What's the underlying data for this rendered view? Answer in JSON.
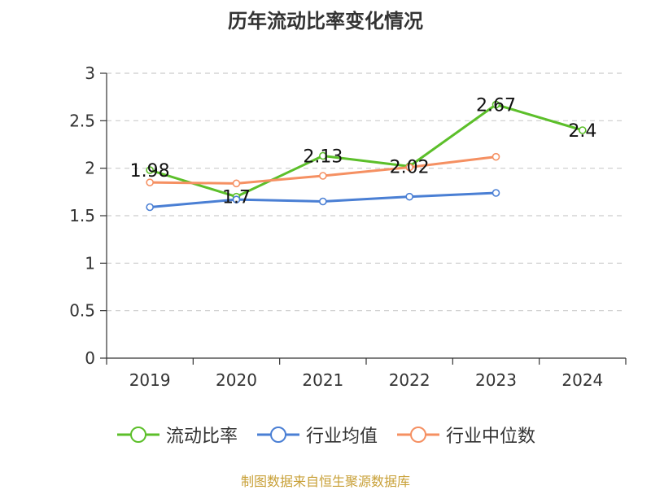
{
  "chart_data": {
    "type": "line",
    "title": "历年流动比率变化情况",
    "categories": [
      "2019",
      "2020",
      "2021",
      "2022",
      "2023",
      "2024"
    ],
    "ylim": [
      0,
      3
    ],
    "yticks": [
      0,
      0.5,
      1,
      1.5,
      2,
      2.5,
      3
    ],
    "ytick_labels": [
      "0",
      "0.5",
      "1",
      "1.5",
      "2",
      "2.5",
      "3"
    ],
    "grid": true,
    "legend_position": "bottom",
    "series": [
      {
        "name": "流动比率",
        "color": "#5cbf2a",
        "values": [
          1.98,
          1.7,
          2.13,
          2.02,
          2.67,
          2.4
        ],
        "labels": [
          "1.98",
          "1.7",
          "2.13",
          "2.02",
          "2.67",
          "2.4"
        ]
      },
      {
        "name": "行业均值",
        "color": "#4a7fd4",
        "values": [
          1.59,
          1.67,
          1.65,
          1.7,
          1.74,
          null
        ]
      },
      {
        "name": "行业中位数",
        "color": "#f59062",
        "values": [
          1.85,
          1.84,
          1.92,
          2.01,
          2.12,
          null
        ]
      }
    ]
  },
  "source_text": "制图数据来自恒生聚源数据库",
  "source_color": "#c8a037"
}
